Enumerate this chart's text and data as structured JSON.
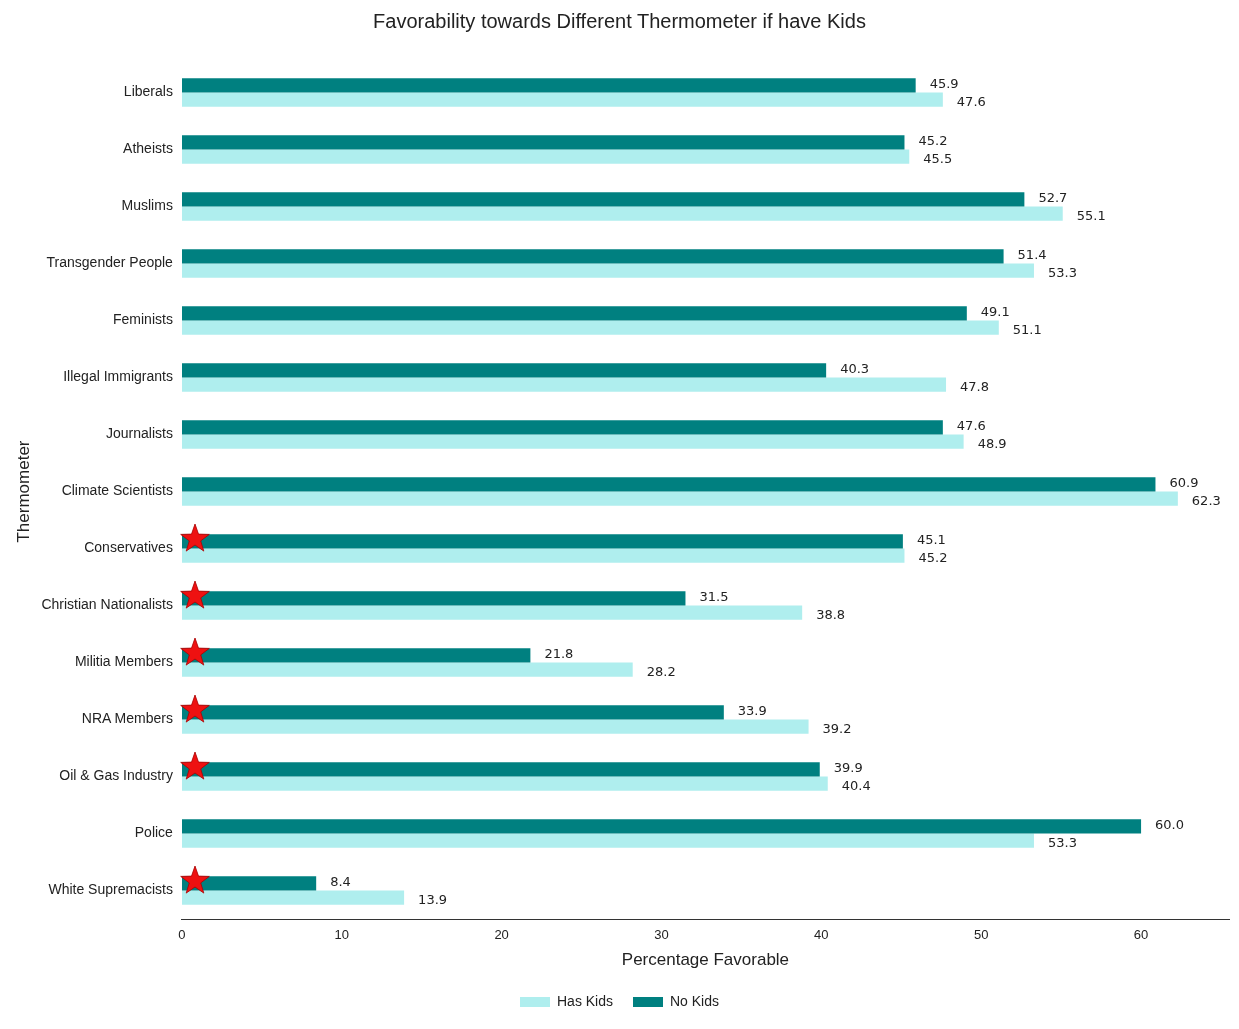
{
  "chart_data": {
    "type": "bar",
    "orientation": "horizontal",
    "title": "Favorability towards Different Thermometer if have Kids",
    "xlabel": "Percentage Favorable",
    "ylabel": "Thermometer",
    "categories": [
      "Liberals",
      "Atheists",
      "Muslims",
      "Transgender People",
      "Feminists",
      "Illegal Immigrants",
      "Journalists",
      "Climate Scientists",
      "Conservatives",
      "Christian Nationalists",
      "Militia Members",
      "NRA Members",
      "Oil & Gas Industry",
      "Police",
      "White Supremacists"
    ],
    "series": [
      {
        "name": "No Kids",
        "color": "#008080",
        "values": [
          45.9,
          45.2,
          52.7,
          51.4,
          49.1,
          40.3,
          47.6,
          60.9,
          45.1,
          31.5,
          21.8,
          33.9,
          39.9,
          60.0,
          8.4
        ],
        "value_labels": [
          "45.9",
          "45.2",
          "52.7",
          "51.4",
          "49.1",
          "40.3",
          "47.6",
          "60.9",
          "45.1",
          "31.5",
          "21.8",
          "33.9",
          "39.9",
          "60.0",
          "8.4"
        ]
      },
      {
        "name": "Has Kids",
        "color": "#afeeee",
        "values": [
          47.6,
          45.5,
          55.1,
          53.3,
          51.1,
          47.8,
          48.9,
          62.3,
          45.2,
          38.8,
          28.2,
          39.2,
          40.4,
          53.3,
          13.9
        ],
        "value_labels": [
          "47.6",
          "45.5",
          "55.1",
          "53.3",
          "51.1",
          "47.8",
          "48.9",
          "62.3",
          "45.2",
          "38.8",
          "28.2",
          "39.2",
          "40.4",
          "53.3",
          "13.9"
        ]
      }
    ],
    "xlim": [
      0,
      65.5
    ],
    "xticks": [
      0,
      10,
      20,
      30,
      40,
      50,
      60
    ],
    "grid": false,
    "legend": "bottom"
  }
}
